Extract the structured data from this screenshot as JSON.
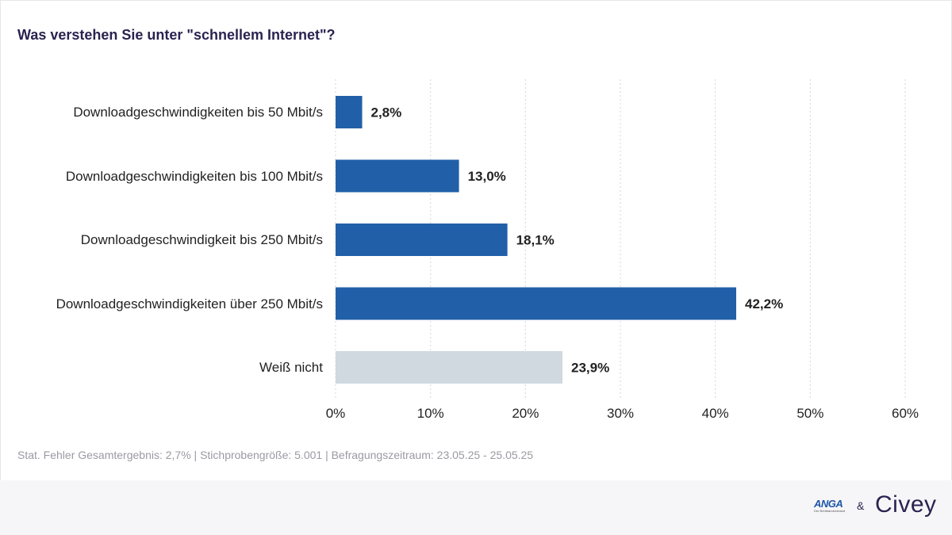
{
  "title": "Was verstehen Sie unter \"schnellem Internet\"?",
  "chart_data": {
    "type": "bar",
    "orientation": "horizontal",
    "title": "Was verstehen Sie unter \"schnellem Internet\"?",
    "categories": [
      "Downloadgeschwindigkeiten bis 50 Mbit/s",
      "Downloadgeschwindigkeiten bis 100 Mbit/s",
      "Downloadgeschwindigkeit bis 250 Mbit/s",
      "Downloadgeschwindigkeiten über 250 Mbit/s",
      "Weiß nicht"
    ],
    "values": [
      2.8,
      13.0,
      18.1,
      42.2,
      23.9
    ],
    "value_labels": [
      "2,8%",
      "13,0%",
      "18,1%",
      "42,2%",
      "23,9%"
    ],
    "bar_colors": [
      "#2160a8",
      "#2160a8",
      "#2160a8",
      "#2160a8",
      "#d0d8e0"
    ],
    "xlim": [
      0,
      60
    ],
    "xticks": [
      0,
      10,
      20,
      30,
      40,
      50,
      60
    ],
    "xtick_labels": [
      "0%",
      "10%",
      "20%",
      "30%",
      "40%",
      "50%",
      "60%"
    ],
    "xlabel": "",
    "ylabel": "",
    "grid": "vertical dotted"
  },
  "footnote": "Stat. Fehler Gesamtergebnis: 2,7% | Stichprobengröße: 5.001 | Befragungszeitraum: 23.05.25 - 25.05.25",
  "branding": {
    "partner_logo": "ANGA",
    "partner_logo_sub": "Der Breitbandverband",
    "separator": "&",
    "brand_logo": "Civey"
  }
}
